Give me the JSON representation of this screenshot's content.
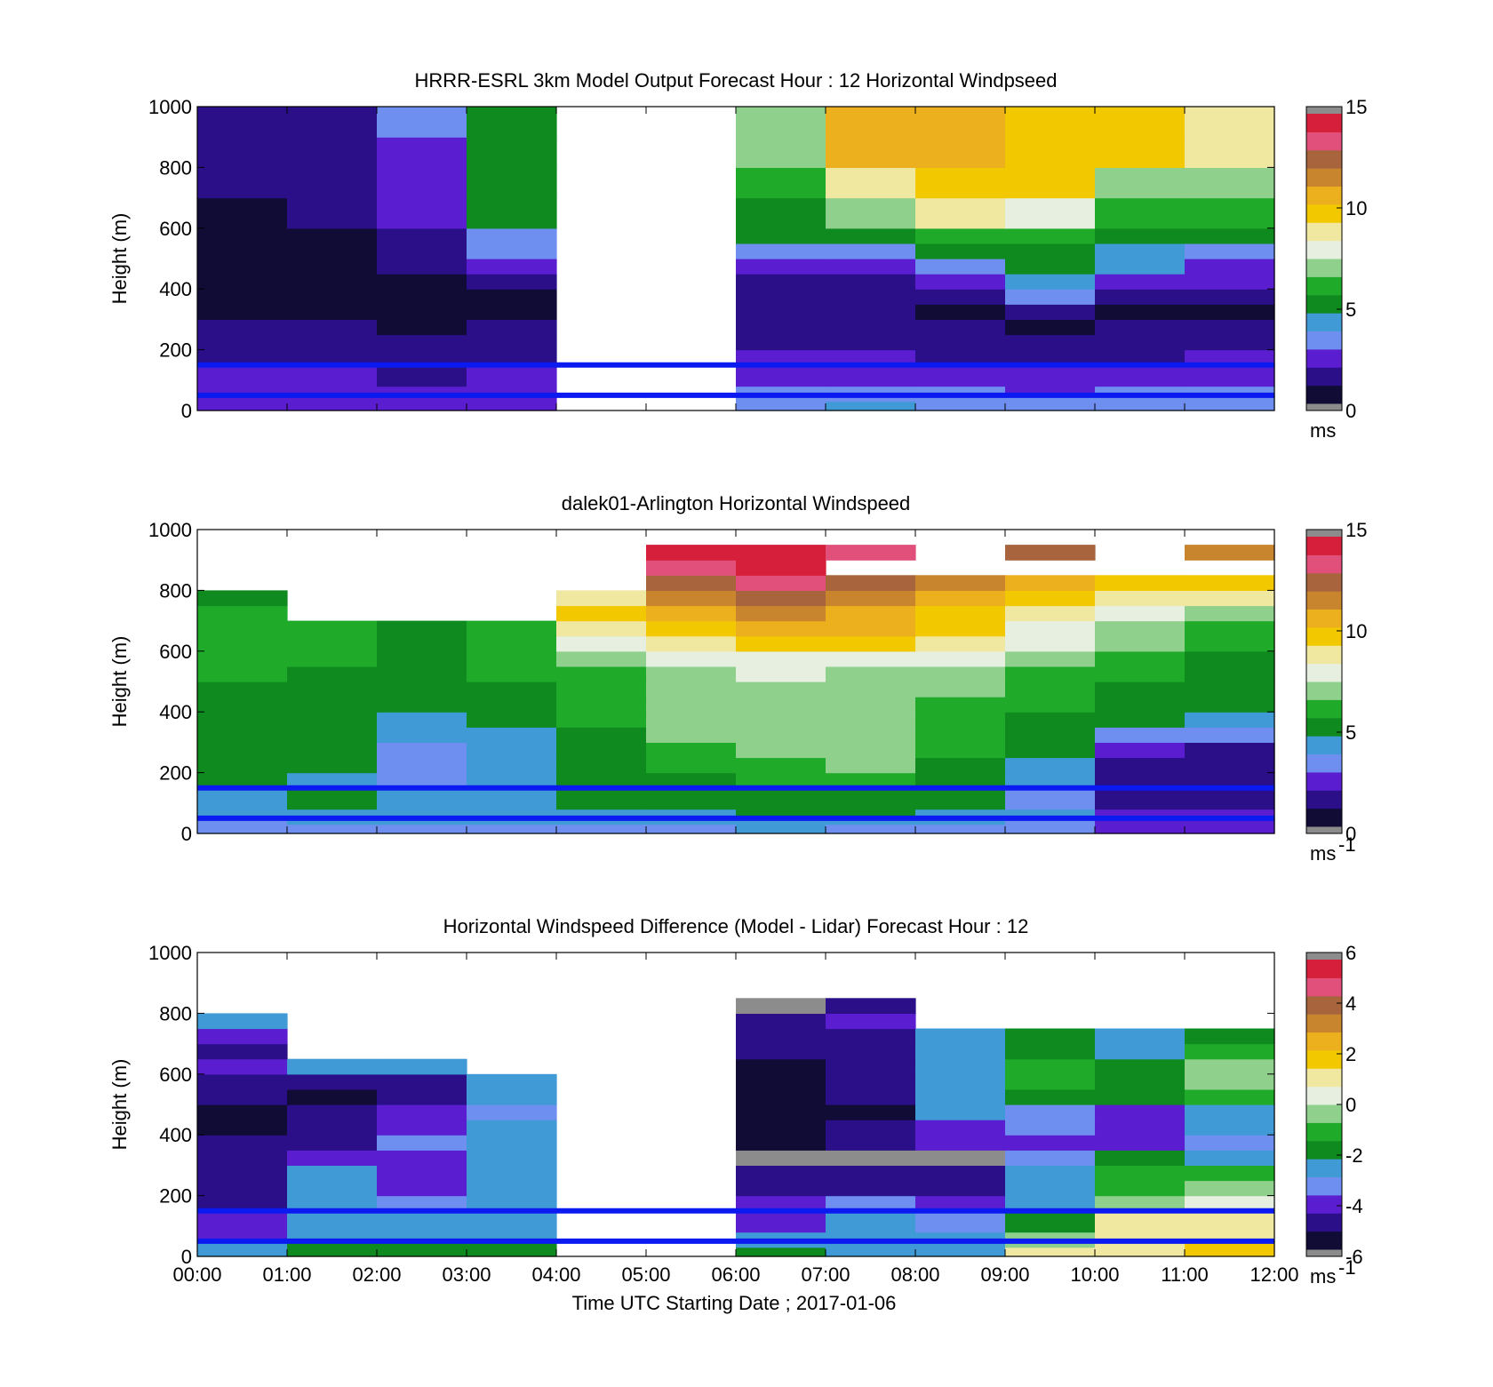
{
  "figure": {
    "xlabel": "Time UTC  Starting Date ; 2017-01-06",
    "xticks": [
      "00:00",
      "01:00",
      "02:00",
      "03:00",
      "04:00",
      "05:00",
      "06:00",
      "07:00",
      "08:00",
      "09:00",
      "10:00",
      "11:00",
      "12:00"
    ]
  },
  "colormap": [
    "#100c35",
    "#2a0f88",
    "#5a1ed0",
    "#6f8ff0",
    "#3f9ad6",
    "#0e8a1f",
    "#1faa2a",
    "#8ed08c",
    "#e6efe0",
    "#f0e7a0",
    "#f2c800",
    "#ecb01e",
    "#c9852e",
    "#a8643c",
    "#e0507a",
    "#d61f3a"
  ],
  "chart_data": [
    {
      "type": "heatmap",
      "title": "HRRR-ESRL 3km Model Output   Forecast Hour : 12 Horizontal Windpseed",
      "xlabel": "",
      "ylabel": "Height (m)",
      "xlim": [
        0,
        12
      ],
      "ylim": [
        0,
        1000
      ],
      "yticks": [
        0,
        200,
        400,
        600,
        800,
        1000
      ],
      "clim": [
        0,
        15
      ],
      "cticks": [
        "0",
        "5",
        "10",
        "15"
      ],
      "cunit": "ms",
      "reference_lines_m": [
        150,
        50
      ],
      "x_bins": [
        0,
        1,
        2,
        3,
        4,
        5,
        6,
        7,
        8,
        9,
        10,
        11,
        12
      ],
      "y_bins": [
        0,
        30,
        50,
        80,
        150,
        200,
        250,
        300,
        350,
        400,
        450,
        500,
        550,
        600,
        700,
        800,
        900,
        1000
      ],
      "values": [
        [
          2.5,
          2.4,
          2.2,
          2.6,
          null,
          null,
          3.5,
          3.8,
          3.6,
          3.6,
          3.4,
          3.5
        ],
        [
          2.4,
          2.4,
          2.2,
          2.6,
          null,
          null,
          3.4,
          3.5,
          3.4,
          3.4,
          3.2,
          3.3
        ],
        [
          2.3,
          2.3,
          2.1,
          2.4,
          null,
          null,
          3.0,
          3.1,
          3.0,
          2.6,
          2.9,
          3.0
        ],
        [
          2.0,
          2.0,
          1.8,
          2.0,
          null,
          null,
          2.4,
          2.4,
          2.4,
          2.0,
          2.3,
          2.4
        ],
        [
          1.6,
          1.7,
          1.5,
          1.5,
          null,
          null,
          2.0,
          2.1,
          1.8,
          1.2,
          1.8,
          1.9
        ],
        [
          1.3,
          1.4,
          1.2,
          1.3,
          null,
          null,
          1.7,
          1.6,
          1.4,
          1.0,
          1.4,
          1.5
        ],
        [
          1.1,
          1.1,
          0.9,
          1.0,
          null,
          null,
          1.4,
          1.4,
          1.0,
          0.2,
          1.1,
          1.2
        ],
        [
          0.9,
          0.9,
          0.7,
          0.8,
          null,
          null,
          1.2,
          1.2,
          0.8,
          1.6,
          0.9,
          0.9
        ],
        [
          0.8,
          0.7,
          0.7,
          0.9,
          null,
          null,
          1.3,
          1.3,
          1.6,
          3.0,
          1.3,
          1.1
        ],
        [
          0.7,
          0.6,
          0.8,
          1.3,
          null,
          null,
          1.8,
          1.8,
          2.4,
          4.6,
          2.6,
          2.0
        ],
        [
          0.6,
          0.6,
          1.2,
          2.3,
          null,
          null,
          2.8,
          2.3,
          3.5,
          4.8,
          4.6,
          2.8
        ],
        [
          0.6,
          0.7,
          1.4,
          2.9,
          null,
          null,
          2.9,
          3.3,
          5.5,
          5.5,
          4.6,
          3.4
        ],
        [
          0.7,
          0.8,
          1.6,
          3.6,
          null,
          null,
          5.0,
          5.3,
          6.0,
          5.9,
          5.6,
          5.4
        ],
        [
          0.9,
          1.0,
          2.0,
          4.8,
          null,
          null,
          5.3,
          7.0,
          8.6,
          7.9,
          6.3,
          6.1
        ],
        [
          1.0,
          1.2,
          2.3,
          5.0,
          null,
          null,
          6.2,
          9.3,
          10.0,
          9.6,
          7.0,
          7.2
        ],
        [
          1.1,
          1.6,
          2.8,
          5.2,
          null,
          null,
          7.3,
          10.4,
          11.2,
          10.3,
          9.6,
          8.6
        ],
        [
          1.2,
          1.8,
          3.2,
          5.3,
          null,
          null,
          7.3,
          10.4,
          11.2,
          10.3,
          9.6,
          8.6
        ]
      ]
    },
    {
      "type": "heatmap",
      "title": "dalek01-Arlington  Horizontal Windspeed",
      "xlabel": "",
      "ylabel": "Height (m)",
      "xlim": [
        0,
        12
      ],
      "ylim": [
        0,
        1000
      ],
      "yticks": [
        0,
        200,
        400,
        600,
        800,
        1000
      ],
      "clim": [
        0,
        15
      ],
      "cticks": [
        "0",
        "5",
        "10",
        "15"
      ],
      "cunit": "ms",
      "cunit_sup": "-1",
      "reference_lines_m": [
        150,
        50
      ],
      "x_bins": [
        0,
        1,
        2,
        3,
        4,
        5,
        6,
        7,
        8,
        9,
        10,
        11,
        12
      ],
      "y_bins": [
        0,
        30,
        50,
        80,
        150,
        200,
        250,
        300,
        350,
        400,
        450,
        500,
        550,
        600,
        650,
        700,
        750,
        800,
        850,
        900,
        950
      ],
      "values": [
        [
          3.0,
          3.1,
          3.0,
          3.2,
          3.1,
          3.5,
          3.8,
          3.6,
          3.4,
          3.0,
          2.6,
          2.4
        ],
        [
          3.4,
          3.8,
          4.0,
          3.9,
          4.1,
          4.2,
          4.4,
          4.6,
          4.0,
          3.6,
          2.8,
          2.6
        ],
        [
          4.0,
          4.0,
          3.8,
          4.2,
          4.4,
          4.5,
          4.8,
          5.0,
          4.6,
          3.8,
          2.4,
          2.2
        ],
        [
          4.6,
          4.7,
          3.9,
          4.4,
          4.8,
          5.0,
          5.3,
          5.6,
          5.0,
          3.4,
          1.8,
          1.6
        ],
        [
          4.8,
          4.5,
          3.6,
          4.1,
          5.0,
          5.3,
          5.8,
          6.0,
          5.2,
          3.8,
          1.2,
          1.2
        ],
        [
          4.9,
          4.7,
          3.5,
          3.9,
          5.2,
          5.8,
          6.3,
          6.8,
          5.6,
          4.6,
          1.6,
          1.0
        ],
        [
          5.0,
          4.9,
          3.6,
          3.8,
          5.4,
          6.4,
          7.0,
          7.3,
          6.0,
          4.8,
          2.4,
          1.6
        ],
        [
          5.2,
          5.1,
          3.8,
          4.2,
          5.6,
          6.8,
          7.2,
          7.4,
          6.4,
          5.0,
          3.6,
          3.4
        ],
        [
          5.4,
          5.3,
          4.4,
          4.9,
          5.9,
          6.9,
          7.2,
          7.2,
          6.3,
          5.4,
          4.8,
          4.6
        ],
        [
          5.5,
          5.4,
          4.9,
          5.3,
          6.0,
          6.8,
          7.0,
          7.0,
          6.4,
          5.8,
          5.4,
          5.2
        ],
        [
          5.6,
          5.5,
          5.2,
          5.6,
          6.2,
          6.9,
          7.1,
          7.1,
          6.6,
          6.0,
          5.6,
          5.4
        ],
        [
          5.7,
          5.6,
          5.3,
          5.8,
          6.5,
          7.3,
          7.5,
          7.3,
          7.0,
          6.4,
          5.9,
          5.5
        ],
        [
          5.8,
          5.7,
          5.4,
          5.9,
          7.0,
          8.0,
          8.4,
          8.2,
          7.6,
          6.9,
          6.2,
          5.6
        ],
        [
          5.9,
          5.8,
          5.5,
          6.0,
          8.0,
          9.0,
          9.6,
          9.4,
          8.6,
          7.6,
          6.6,
          5.8
        ],
        [
          5.9,
          5.8,
          5.6,
          6.0,
          9.2,
          10.0,
          10.6,
          10.4,
          9.4,
          8.4,
          7.2,
          6.2
        ],
        [
          5.8,
          null,
          null,
          null,
          10.0,
          10.8,
          11.4,
          11.2,
          10.2,
          9.2,
          8.0,
          7.4
        ],
        [
          5.6,
          null,
          null,
          null,
          8.8,
          11.6,
          12.2,
          12.0,
          11.2,
          10.2,
          9.0,
          8.6
        ],
        [
          null,
          null,
          null,
          null,
          null,
          12.4,
          13.2,
          13.0,
          11.8,
          11.0,
          10.0,
          9.6
        ],
        [
          null,
          null,
          null,
          null,
          null,
          13.8,
          14.2,
          null,
          null,
          null,
          null,
          null
        ],
        [
          null,
          null,
          null,
          null,
          null,
          14.6,
          14.4,
          13.4,
          null,
          12.6,
          null,
          11.4
        ]
      ]
    },
    {
      "type": "heatmap",
      "title": "Horizontal Windspeed Difference (Model - Lidar) Forecast Hour : 12",
      "xlabel": "Time UTC  Starting Date ; 2017-01-06",
      "ylabel": "Height (m)",
      "xlim": [
        0,
        12
      ],
      "ylim": [
        0,
        1000
      ],
      "yticks": [
        0,
        200,
        400,
        600,
        800,
        1000
      ],
      "clim": [
        -6,
        6
      ],
      "cticks": [
        "-6",
        "-4",
        "-2",
        "0",
        "2",
        "4",
        "6"
      ],
      "cunit": "ms",
      "cunit_sup": "-1",
      "reference_lines_m": [
        150,
        50
      ],
      "x_bins": [
        0,
        1,
        2,
        3,
        4,
        5,
        6,
        7,
        8,
        9,
        10,
        11,
        12
      ],
      "y_bins": [
        0,
        30,
        50,
        80,
        150,
        200,
        250,
        300,
        350,
        400,
        450,
        500,
        550,
        600,
        650,
        700,
        750,
        800,
        850
      ],
      "values": [
        [
          -2.5,
          -1.6,
          -1.6,
          -1.7,
          null,
          null,
          -2.0,
          -2.4,
          -2.4,
          0.8,
          1.4,
          1.6
        ],
        [
          -2.8,
          -2.2,
          -2.0,
          -2.2,
          null,
          null,
          -2.4,
          -2.6,
          -2.6,
          -0.2,
          1.4,
          1.6
        ],
        [
          -3.8,
          -2.6,
          -2.4,
          -2.6,
          null,
          null,
          -3.0,
          -2.8,
          -3.0,
          -0.6,
          1.2,
          1.4
        ],
        [
          -4.2,
          -2.8,
          -3.0,
          -2.8,
          null,
          null,
          -3.8,
          -3.0,
          -3.4,
          -1.6,
          0.8,
          1.2
        ],
        [
          -4.6,
          -2.8,
          -3.6,
          -2.8,
          null,
          null,
          -4.2,
          -3.6,
          -3.8,
          -2.6,
          -0.4,
          0.6
        ],
        [
          -4.8,
          -2.6,
          -3.8,
          -2.8,
          null,
          null,
          -4.8,
          -4.6,
          -4.6,
          -2.6,
          -0.8,
          -0.4
        ],
        [
          -4.8,
          -2.6,
          -4.2,
          -2.6,
          null,
          null,
          -5.0,
          -5.0,
          -5.0,
          -3.0,
          -1.2,
          -1.4
        ],
        [
          -5.0,
          -4.4,
          -4.0,
          -2.6,
          null,
          null,
          -6.2,
          -6.2,
          -6.2,
          -3.6,
          -2.2,
          -2.6
        ],
        [
          -5.0,
          -4.8,
          -3.6,
          -2.4,
          null,
          null,
          -5.4,
          -5.0,
          -4.4,
          -3.8,
          -4.2,
          -3.4
        ],
        [
          -5.4,
          -5.2,
          -3.8,
          -2.6,
          null,
          null,
          -5.6,
          -5.2,
          -4.2,
          -3.6,
          -4.4,
          -2.6
        ],
        [
          -5.6,
          -5.2,
          -4.2,
          -3.4,
          null,
          null,
          -5.8,
          -5.4,
          -2.6,
          -3.4,
          -4.2,
          -2.4
        ],
        [
          -4.6,
          -5.4,
          -4.6,
          -3.0,
          null,
          null,
          -5.8,
          -5.2,
          -2.4,
          -1.6,
          -2.2,
          -0.8
        ],
        [
          -4.6,
          -5.0,
          -4.8,
          -2.6,
          null,
          null,
          -5.6,
          -4.8,
          -2.4,
          -0.8,
          -2.0,
          -0.2
        ],
        [
          -4.4,
          -2.4,
          -2.8,
          null,
          null,
          null,
          -5.4,
          -4.6,
          -2.6,
          -1.0,
          -2.2,
          -0.4
        ],
        [
          -4.6,
          null,
          null,
          null,
          null,
          null,
          -5.0,
          -4.6,
          -2.6,
          -1.8,
          -2.4,
          -1.2
        ],
        [
          -4.2,
          null,
          null,
          null,
          null,
          null,
          -4.8,
          -5.0,
          -2.6,
          -2.2,
          -2.6,
          -1.8
        ],
        [
          -2.6,
          null,
          null,
          null,
          null,
          null,
          -4.6,
          -4.4,
          null,
          null,
          null,
          null
        ],
        [
          null,
          null,
          null,
          null,
          null,
          null,
          -6.4,
          -4.6,
          null,
          null,
          null,
          null
        ]
      ]
    }
  ]
}
